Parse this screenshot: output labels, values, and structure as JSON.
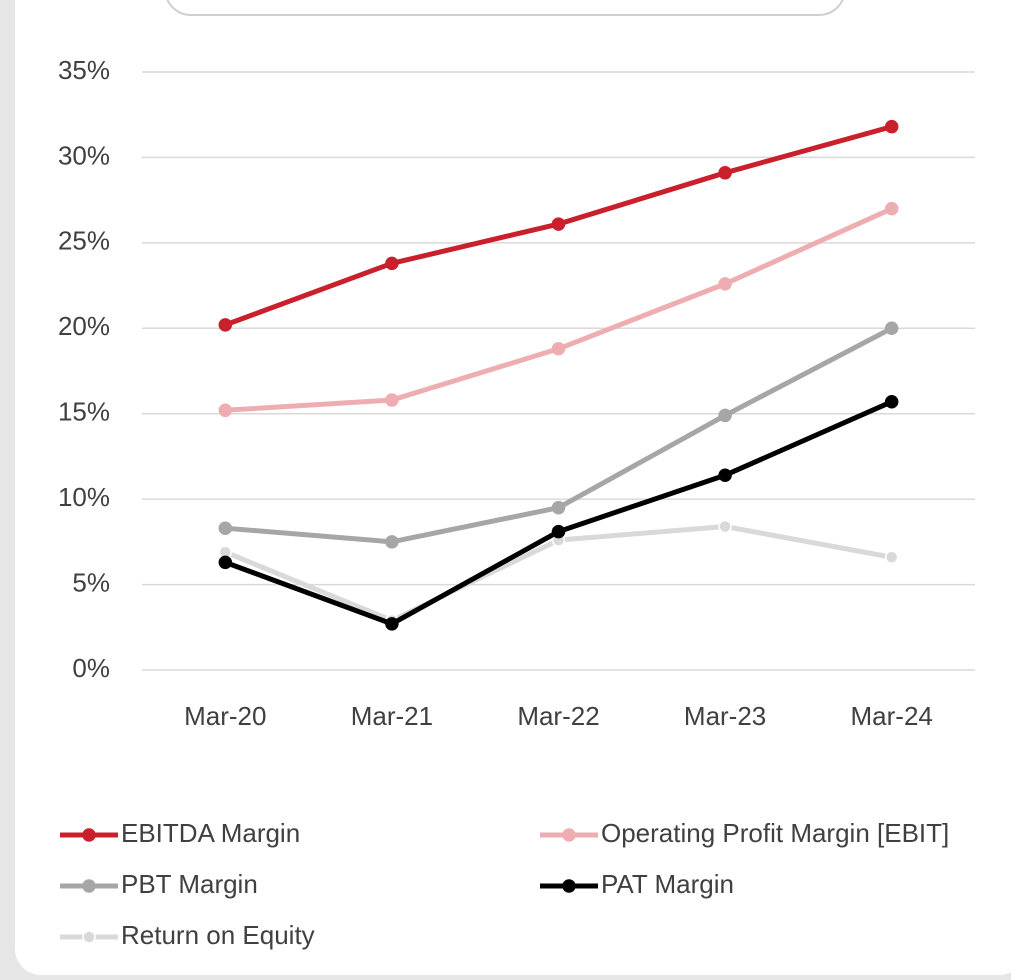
{
  "chart_data": {
    "type": "line",
    "categories": [
      "Mar-20",
      "Mar-21",
      "Mar-22",
      "Mar-23",
      "Mar-24"
    ],
    "series": [
      {
        "name": "EBITDA Margin",
        "color": "#c9202c",
        "values": [
          20.2,
          23.8,
          26.1,
          29.1,
          31.8
        ]
      },
      {
        "name": "Operating Profit Margin [EBIT]",
        "color": "#eeaeb1",
        "values": [
          15.2,
          15.8,
          18.8,
          22.6,
          27.0
        ]
      },
      {
        "name": "PBT Margin",
        "color": "#a6a6a6",
        "values": [
          8.3,
          7.5,
          9.5,
          14.9,
          20.0
        ]
      },
      {
        "name": "PAT Margin",
        "color": "#000000",
        "values": [
          6.3,
          2.7,
          8.1,
          11.4,
          15.7
        ]
      },
      {
        "name": "Return on Equity",
        "color": "#d9d9d9",
        "values": [
          6.9,
          2.9,
          7.6,
          8.4,
          6.6
        ]
      }
    ],
    "ylim": [
      0,
      35
    ],
    "yticks": [
      {
        "value": 0,
        "label": "0%"
      },
      {
        "value": 5,
        "label": "5%"
      },
      {
        "value": 10,
        "label": "10%"
      },
      {
        "value": 15,
        "label": "15%"
      },
      {
        "value": 20,
        "label": "20%"
      },
      {
        "value": 25,
        "label": "25%"
      },
      {
        "value": 30,
        "label": "30%"
      },
      {
        "value": 35,
        "label": "35%"
      }
    ],
    "grid": true,
    "legend": "bottom"
  }
}
